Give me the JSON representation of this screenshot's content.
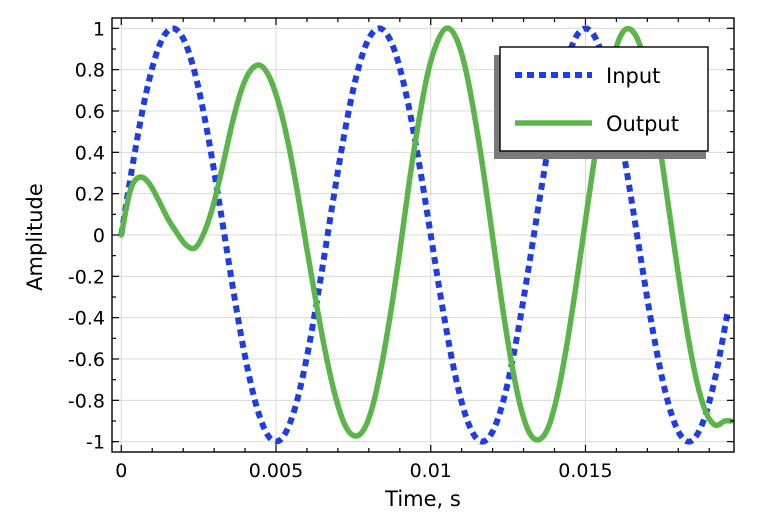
{
  "chart_data": {
    "type": "line",
    "title": "",
    "xlabel": "Time, s",
    "ylabel": "Amplitude",
    "xlim": [
      -0.0003,
      0.0198
    ],
    "ylim": [
      -1.05,
      1.05
    ],
    "grid": true,
    "legend_position": "top-right",
    "xticks": [
      0,
      0.005,
      0.01,
      0.015
    ],
    "xtick_labels": [
      "0",
      "0.005",
      "0.01",
      "0.015"
    ],
    "yticks": [
      1,
      0.8,
      0.6,
      0.4,
      0.2,
      0,
      -0.2,
      -0.4,
      -0.6,
      -0.8,
      -1
    ],
    "ytick_labels": [
      "1",
      "0.8",
      "0.6",
      "0.4",
      "0.2",
      "0",
      "-0.2",
      "-0.4",
      "-0.6",
      "-0.8",
      "-1"
    ],
    "series": [
      {
        "name": "Input",
        "color": "#1f3de0",
        "style": "dotted",
        "x": [
          0,
          0.0004,
          0.0008,
          0.0012,
          0.0016,
          0.002,
          0.0024,
          0.0028,
          0.0032,
          0.0036,
          0.004,
          0.0044,
          0.0048,
          0.0052,
          0.0056,
          0.006,
          0.0064,
          0.0068,
          0.0072,
          0.0076,
          0.008,
          0.0084,
          0.0088,
          0.0092,
          0.0096,
          0.01,
          0.0104,
          0.0108,
          0.0112,
          0.0116,
          0.012,
          0.0124,
          0.0128,
          0.0132,
          0.0136,
          0.014,
          0.0144,
          0.0148,
          0.0152,
          0.0156,
          0.016,
          0.0164,
          0.0168,
          0.0172,
          0.0176,
          0.018,
          0.0184,
          0.0188,
          0.0192,
          0.0196
        ],
        "y": [
          0,
          0.368,
          0.685,
          0.905,
          0.998,
          0.951,
          0.771,
          0.482,
          0.125,
          -0.249,
          -0.588,
          -0.844,
          -0.982,
          -0.982,
          -0.844,
          -0.588,
          -0.249,
          0.125,
          0.482,
          0.771,
          0.951,
          0.998,
          0.905,
          0.685,
          0.368,
          0,
          -0.368,
          -0.685,
          -0.905,
          -0.998,
          -0.951,
          -0.771,
          -0.482,
          -0.125,
          0.249,
          0.588,
          0.844,
          0.982,
          0.982,
          0.844,
          0.588,
          0.249,
          -0.125,
          -0.482,
          -0.771,
          -0.951,
          -0.998,
          -0.905,
          -0.685,
          -0.368
        ]
      },
      {
        "name": "Output",
        "color": "#5cb54a",
        "style": "solid",
        "x": [
          0,
          0.0003,
          0.0006,
          0.0009,
          0.0012,
          0.0015,
          0.0018,
          0.0021,
          0.0024,
          0.0027,
          0.003,
          0.0033,
          0.0036,
          0.0039,
          0.0042,
          0.0045,
          0.0048,
          0.0051,
          0.0054,
          0.0057,
          0.006,
          0.0063,
          0.0066,
          0.0069,
          0.0072,
          0.0075,
          0.0078,
          0.0081,
          0.0084,
          0.0087,
          0.009,
          0.0093,
          0.0096,
          0.0099,
          0.0102,
          0.0105,
          0.0108,
          0.0111,
          0.0114,
          0.0117,
          0.012,
          0.0123,
          0.0126,
          0.0129,
          0.0132,
          0.0135,
          0.0138,
          0.0141,
          0.0144,
          0.0147,
          0.015,
          0.0153,
          0.0156,
          0.0159,
          0.0162,
          0.0165,
          0.0168,
          0.0171,
          0.0174,
          0.0177,
          0.018,
          0.0183,
          0.0186,
          0.0189,
          0.0192,
          0.0195,
          0.0197
        ],
        "y": [
          0,
          0.22,
          0.28,
          0.25,
          0.17,
          0.08,
          0.01,
          -0.05,
          -0.06,
          0.02,
          0.16,
          0.35,
          0.55,
          0.71,
          0.8,
          0.82,
          0.76,
          0.63,
          0.44,
          0.2,
          -0.07,
          -0.33,
          -0.57,
          -0.77,
          -0.91,
          -0.97,
          -0.95,
          -0.84,
          -0.64,
          -0.38,
          -0.08,
          0.25,
          0.54,
          0.78,
          0.93,
          1.0,
          0.96,
          0.82,
          0.59,
          0.31,
          -0.01,
          -0.33,
          -0.61,
          -0.83,
          -0.96,
          -0.99,
          -0.93,
          -0.77,
          -0.53,
          -0.24,
          0.07,
          0.38,
          0.65,
          0.86,
          0.98,
          0.99,
          0.9,
          0.7,
          0.43,
          0.12,
          -0.19,
          -0.48,
          -0.71,
          -0.86,
          -0.92,
          -0.9,
          -0.9
        ]
      }
    ]
  }
}
